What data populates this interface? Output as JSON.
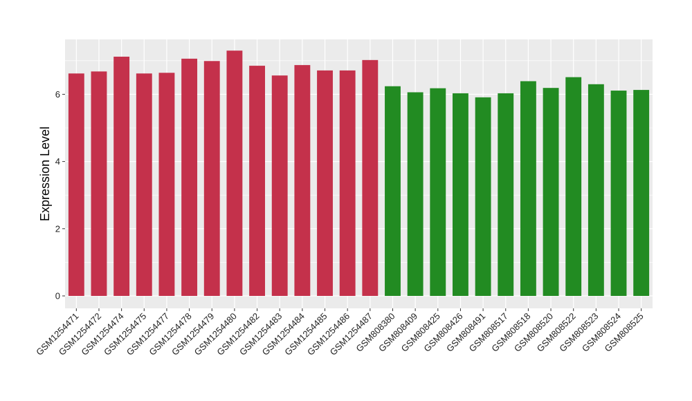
{
  "chart_data": {
    "type": "bar",
    "title": "",
    "xlabel": "",
    "ylabel": "Expression Level",
    "ylim": [
      0,
      7.62
    ],
    "yticks": [
      0,
      2,
      4,
      6
    ],
    "grid": true,
    "legend": "none",
    "colors": {
      "group1": "#C4314B",
      "group2": "#228B22",
      "panel": "#EBEBEB",
      "grid": "#FFFFFF"
    },
    "categories": [
      "GSM1254471",
      "GSM1254472",
      "GSM1254474",
      "GSM1254475",
      "GSM1254477",
      "GSM1254478",
      "GSM1254479",
      "GSM1254480",
      "GSM1254482",
      "GSM1254483",
      "GSM1254484",
      "GSM1254485",
      "GSM1254486",
      "GSM1254487",
      "GSM808380",
      "GSM808409",
      "GSM808425",
      "GSM808426",
      "GSM808491",
      "GSM808517",
      "GSM808518",
      "GSM808520",
      "GSM808522",
      "GSM808523",
      "GSM808524",
      "GSM808525"
    ],
    "values": [
      6.62,
      6.68,
      7.12,
      6.62,
      6.64,
      7.06,
      6.99,
      7.3,
      6.85,
      6.56,
      6.87,
      6.71,
      6.71,
      7.02,
      6.24,
      6.06,
      6.18,
      6.03,
      5.91,
      6.03,
      6.39,
      6.19,
      6.51,
      6.3,
      6.11,
      6.13
    ],
    "bar_groups": [
      "group1",
      "group1",
      "group1",
      "group1",
      "group1",
      "group1",
      "group1",
      "group1",
      "group1",
      "group1",
      "group1",
      "group1",
      "group1",
      "group1",
      "group2",
      "group2",
      "group2",
      "group2",
      "group2",
      "group2",
      "group2",
      "group2",
      "group2",
      "group2",
      "group2",
      "group2"
    ]
  }
}
